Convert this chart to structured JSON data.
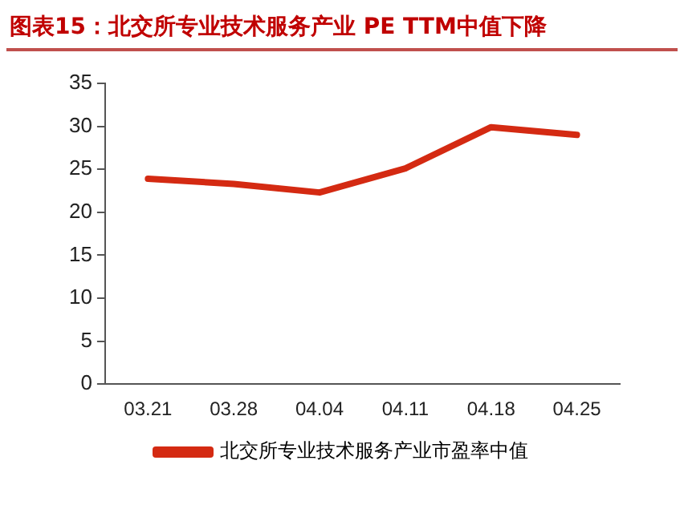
{
  "chart_data": {
    "type": "line",
    "title": "图表15：北交所专业技术服务产业 PE TTM中值下降",
    "categories": [
      "03.21",
      "03.28",
      "04.04",
      "04.11",
      "04.18",
      "04.25"
    ],
    "series": [
      {
        "name": "北交所专业技术服务产业市盈率中值",
        "color": "#d42a12",
        "values": [
          23.9,
          23.3,
          22.3,
          25.1,
          29.9,
          29.0
        ]
      }
    ],
    "ylim": [
      0,
      35
    ],
    "yticks": [
      0,
      5,
      10,
      15,
      20,
      25,
      30,
      35
    ],
    "grid": false,
    "legend": "bottom",
    "marker": "none",
    "line_style": "solid"
  }
}
